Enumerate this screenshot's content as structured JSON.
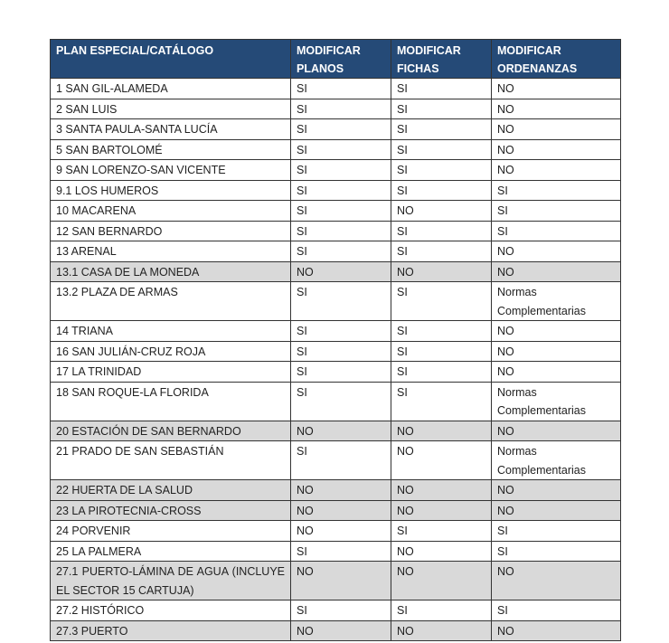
{
  "colors": {
    "header_bg": "#254a77",
    "shaded_row": "#d9d9d9"
  },
  "headers": [
    "PLAN ESPECIAL/CATÁLOGO",
    "MODIFICAR PLANOS",
    "MODIFICAR FICHAS",
    "MODIFICAR ORDENANZAS"
  ],
  "rows": [
    {
      "plan": "1  SAN GIL-ALAMEDA",
      "planos": "SI",
      "fichas": "SI",
      "ordenanzas": "NO",
      "shaded": false
    },
    {
      "plan": "2 SAN LUIS",
      "planos": "SI",
      "fichas": "SI",
      "ordenanzas": "NO",
      "shaded": false
    },
    {
      "plan": "3  SANTA PAULA-SANTA LUCÍA",
      "planos": "SI",
      "fichas": "SI",
      "ordenanzas": "NO",
      "shaded": false
    },
    {
      "plan": "5 SAN BARTOLOMÉ",
      "planos": "SI",
      "fichas": "SI",
      "ordenanzas": "NO",
      "shaded": false
    },
    {
      "plan": "9 SAN LORENZO-SAN VICENTE",
      "planos": "SI",
      "fichas": "SI",
      "ordenanzas": "NO",
      "shaded": false
    },
    {
      "plan": "9.1 LOS HUMEROS",
      "planos": "SI",
      "fichas": "SI",
      "ordenanzas": "SI",
      "shaded": false
    },
    {
      "plan": "10 MACARENA",
      "planos": "SI",
      "fichas": "NO",
      "ordenanzas": "SI",
      "shaded": false
    },
    {
      "plan": "12 SAN BERNARDO",
      "planos": "SI",
      "fichas": "SI",
      "ordenanzas": "SI",
      "shaded": false
    },
    {
      "plan": "13 ARENAL",
      "planos": "SI",
      "fichas": "SI",
      "ordenanzas": "NO",
      "shaded": false
    },
    {
      "plan": "13.1 CASA DE LA MONEDA",
      "planos": "NO",
      "fichas": "NO",
      "ordenanzas": "NO",
      "shaded": true
    },
    {
      "plan": "13.2 PLAZA DE ARMAS",
      "planos": "SI",
      "fichas": "SI",
      "ordenanzas": "Normas Complementarias",
      "shaded": false
    },
    {
      "plan": "14 TRIANA",
      "planos": "SI",
      "fichas": "SI",
      "ordenanzas": "NO",
      "shaded": false
    },
    {
      "plan": "16 SAN JULIÁN-CRUZ ROJA",
      "planos": "SI",
      "fichas": "SI",
      "ordenanzas": "NO",
      "shaded": false
    },
    {
      "plan": "17 LA TRINIDAD",
      "planos": "SI",
      "fichas": "SI",
      "ordenanzas": "NO",
      "shaded": false
    },
    {
      "plan": "18 SAN ROQUE-LA FLORIDA",
      "planos": "SI",
      "fichas": "SI",
      "ordenanzas": "Normas Complementarias",
      "shaded": false
    },
    {
      "plan": "20 ESTACIÓN DE SAN BERNARDO",
      "planos": "NO",
      "fichas": "NO",
      "ordenanzas": "NO",
      "shaded": true
    },
    {
      "plan": "21 PRADO DE SAN SEBASTIÁN",
      "planos": "SI",
      "fichas": "NO",
      "ordenanzas": "Normas Complementarias",
      "shaded": false
    },
    {
      "plan": "22 HUERTA DE LA SALUD",
      "planos": "NO",
      "fichas": "NO",
      "ordenanzas": "NO",
      "shaded": true
    },
    {
      "plan": "23 LA PIROTECNIA-CROSS",
      "planos": "NO",
      "fichas": "NO",
      "ordenanzas": "NO",
      "shaded": true
    },
    {
      "plan": "24 PORVENIR",
      "planos": "NO",
      "fichas": "SI",
      "ordenanzas": "SI",
      "shaded": false
    },
    {
      "plan": "25 LA PALMERA",
      "planos": "SI",
      "fichas": "NO",
      "ordenanzas": "SI",
      "shaded": false
    },
    {
      "plan": "27.1 PUERTO-LÁMINA DE AGUA (INCLUYE EL SECTOR 15 CARTUJA)",
      "planos": "NO",
      "fichas": "NO",
      "ordenanzas": "NO",
      "shaded": true
    },
    {
      "plan": "27.2 HISTÓRICO",
      "planos": "SI",
      "fichas": "SI",
      "ordenanzas": "SI",
      "shaded": false
    },
    {
      "plan": "27.3 PUERTO",
      "planos": "NO",
      "fichas": "NO",
      "ordenanzas": "NO",
      "shaded": true
    }
  ]
}
